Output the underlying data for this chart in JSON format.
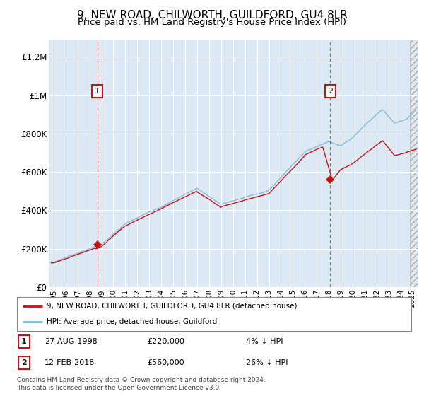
{
  "title": "9, NEW ROAD, CHILWORTH, GUILDFORD, GU4 8LR",
  "subtitle": "Price paid vs. HM Land Registry's House Price Index (HPI)",
  "title_fontsize": 11,
  "subtitle_fontsize": 9.5,
  "background_color": "#ffffff",
  "plot_bg_color": "#dce9f5",
  "grid_color": "#ffffff",
  "hpi_color": "#7ab8d9",
  "price_color": "#cc1111",
  "ylabel_values": [
    "£0",
    "£200K",
    "£400K",
    "£600K",
    "£800K",
    "£1M",
    "£1.2M"
  ],
  "ylim": [
    0,
    1300000
  ],
  "xlim_start": 1994.6,
  "xlim_end": 2025.5,
  "purchase1_x": 1998.65,
  "purchase1_y": 220000,
  "purchase1_label": "1",
  "purchase2_x": 2018.12,
  "purchase2_y": 560000,
  "purchase2_label": "2",
  "legend_line1": "9, NEW ROAD, CHILWORTH, GUILDFORD, GU4 8LR (detached house)",
  "legend_line2": "HPI: Average price, detached house, Guildford",
  "ann1_date": "27-AUG-1998",
  "ann1_price": "£220,000",
  "ann1_pct": "4% ↓ HPI",
  "ann2_date": "12-FEB-2018",
  "ann2_price": "£560,000",
  "ann2_pct": "26% ↓ HPI",
  "footer": "Contains HM Land Registry data © Crown copyright and database right 2024.\nThis data is licensed under the Open Government Licence v3.0."
}
